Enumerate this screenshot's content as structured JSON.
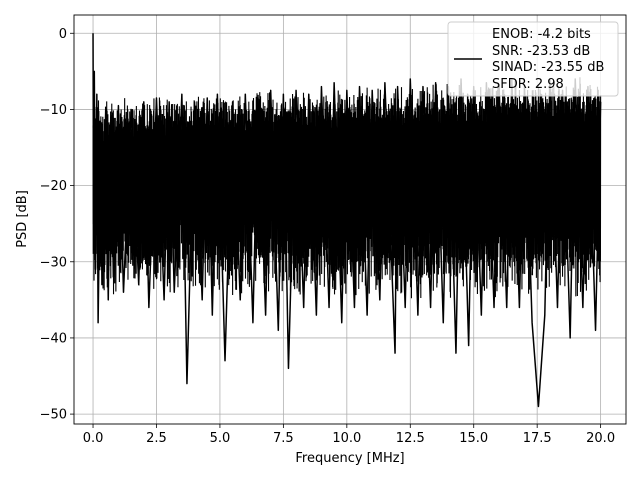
{
  "chart_data": {
    "type": "line",
    "xlabel": "Frequency [MHz]",
    "ylabel": "PSD [dB]",
    "xlim": [
      -0.75,
      21.0
    ],
    "ylim": [
      -51.3,
      2.4
    ],
    "xticks": [
      0.0,
      2.5,
      5.0,
      7.5,
      10.0,
      12.5,
      15.0,
      17.5,
      20.0
    ],
    "xtick_labels": [
      "0.0",
      "2.5",
      "5.0",
      "7.5",
      "10.0",
      "12.5",
      "15.0",
      "17.5",
      "20.0"
    ],
    "yticks": [
      0,
      -10,
      -20,
      -30,
      -40,
      -50
    ],
    "ytick_labels": [
      "0",
      "−10",
      "−20",
      "−30",
      "−40",
      "−50"
    ],
    "grid": true,
    "legend_position": "top-right",
    "legend_lines": [
      "ENOB: -4.2 bits",
      "SNR: -23.53 dB",
      "SINAD: -23.55 dB",
      "SFDR: 2.98"
    ],
    "line_color": "#000000",
    "series": [
      {
        "x": [
          0.0,
          0.02,
          0.05,
          0.1,
          0.15,
          0.2,
          0.3,
          0.35,
          0.5,
          0.6,
          0.7,
          0.8,
          1.0,
          1.2,
          1.5,
          1.8,
          2.0,
          2.2,
          2.5,
          2.8,
          3.0,
          3.2,
          3.5,
          3.7,
          4.0,
          4.3,
          4.5,
          4.7,
          4.9,
          5.2,
          5.5,
          5.8,
          6.0,
          6.3,
          6.5,
          6.8,
          7.0,
          7.3,
          7.5,
          7.7,
          8.0,
          8.3,
          8.5,
          8.8,
          9.0,
          9.3,
          9.5,
          9.8,
          10.0,
          10.3,
          10.5,
          10.8,
          11.0,
          11.3,
          11.5,
          11.9,
          12.0,
          12.3,
          12.5,
          12.8,
          13.0,
          13.3,
          13.5,
          13.8,
          14.0,
          14.3,
          14.5,
          14.8,
          15.0,
          15.3,
          15.5,
          15.8,
          16.0,
          16.3,
          16.5,
          16.8,
          17.0,
          17.3,
          17.55,
          17.8,
          18.0,
          18.3,
          18.5,
          18.8,
          19.0,
          19.3,
          19.5,
          19.8,
          20.0
        ],
        "y": [
          0.0,
          -25.0,
          -5.0,
          -31.0,
          -8.0,
          -38.0,
          -12.0,
          -33.0,
          -10.0,
          -35.0,
          -11.0,
          -32.0,
          -9.5,
          -34.0,
          -10.0,
          -33.0,
          -9.0,
          -36.0,
          -8.5,
          -35.0,
          -9.0,
          -34.0,
          -8.0,
          -46.0,
          -9.0,
          -35.0,
          -8.5,
          -37.0,
          -8.0,
          -43.0,
          -9.0,
          -35.0,
          -8.0,
          -38.0,
          -8.5,
          -37.0,
          -7.5,
          -39.0,
          -8.0,
          -44.0,
          -7.5,
          -36.0,
          -8.0,
          -37.0,
          -7.0,
          -36.0,
          -6.5,
          -38.0,
          -7.5,
          -36.0,
          -7.0,
          -37.0,
          -7.5,
          -35.0,
          -6.5,
          -42.0,
          -7.0,
          -36.0,
          -6.0,
          -37.0,
          -7.0,
          -36.0,
          -6.5,
          -38.0,
          -7.0,
          -42.0,
          -6.0,
          -41.0,
          -7.0,
          -37.0,
          -6.5,
          -36.0,
          -7.0,
          -36.0,
          -6.0,
          -36.0,
          -7.0,
          -38.0,
          -49.0,
          -37.0,
          -6.0,
          -36.0,
          -7.5,
          -40.0,
          -6.0,
          -36.0,
          -7.0,
          -39.0,
          -9.0
        ]
      }
    ]
  }
}
